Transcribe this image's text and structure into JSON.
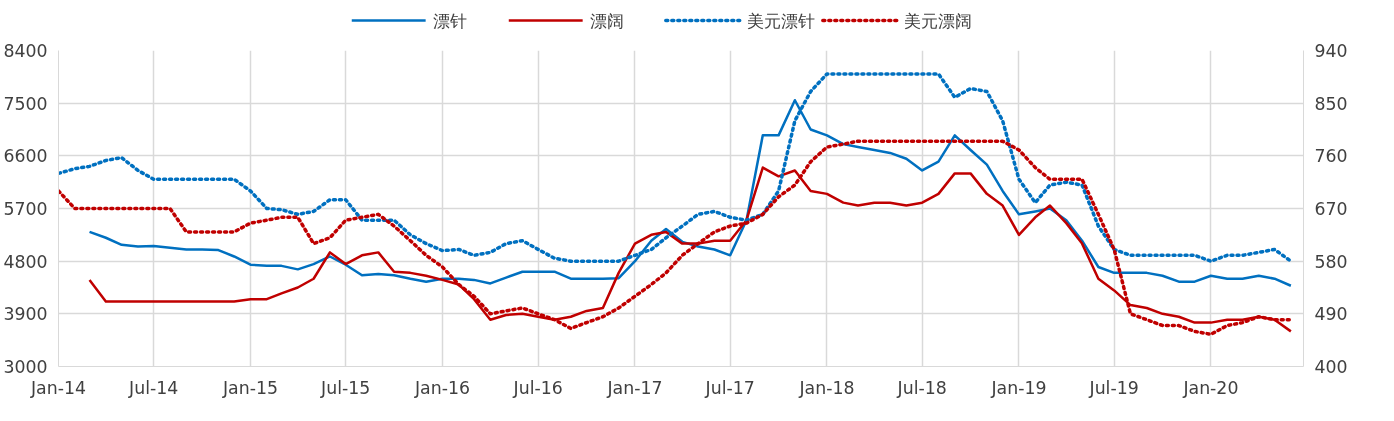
{
  "chart_data": {
    "type": "line",
    "x": [
      "2014-01",
      "2014-02",
      "2014-03",
      "2014-04",
      "2014-05",
      "2014-06",
      "2014-07",
      "2014-08",
      "2014-09",
      "2014-10",
      "2014-11",
      "2014-12",
      "2015-01",
      "2015-02",
      "2015-03",
      "2015-04",
      "2015-05",
      "2015-06",
      "2015-07",
      "2015-08",
      "2015-09",
      "2015-10",
      "2015-11",
      "2015-12",
      "2016-01",
      "2016-02",
      "2016-03",
      "2016-04",
      "2016-05",
      "2016-06",
      "2016-07",
      "2016-08",
      "2016-09",
      "2016-10",
      "2016-11",
      "2016-12",
      "2017-01",
      "2017-02",
      "2017-03",
      "2017-04",
      "2017-05",
      "2017-06",
      "2017-07",
      "2017-08",
      "2017-09",
      "2017-10",
      "2017-11",
      "2017-12",
      "2018-01",
      "2018-02",
      "2018-03",
      "2018-04",
      "2018-05",
      "2018-06",
      "2018-07",
      "2018-08",
      "2018-09",
      "2018-10",
      "2018-11",
      "2018-12",
      "2019-01",
      "2019-02",
      "2019-03",
      "2019-04",
      "2019-05",
      "2019-06",
      "2019-07",
      "2019-08",
      "2019-09",
      "2019-10",
      "2019-11",
      "2019-12",
      "2020-01",
      "2020-02",
      "2020-03",
      "2020-04",
      "2020-05",
      "2020-06"
    ],
    "series": [
      {
        "name": "漂针",
        "color": "#0070c0",
        "line_style": "solid",
        "values": [
          null,
          null,
          5300,
          5200,
          5080,
          5050,
          5060,
          5030,
          5000,
          5000,
          4990,
          4880,
          4740,
          4720,
          4720,
          4660,
          4750,
          4880,
          4740,
          4560,
          4580,
          4560,
          4500,
          4450,
          4500,
          4500,
          4480,
          4420,
          4520,
          4620,
          4620,
          4620,
          4500,
          4500,
          4500,
          4510,
          4800,
          5150,
          5350,
          5130,
          5050,
          5000,
          4900,
          5500,
          6950,
          6950,
          7550,
          7050,
          6950,
          6800,
          6750,
          6700,
          6650,
          6550,
          6350,
          6500,
          6950,
          6700,
          6450,
          6000,
          5600,
          5650,
          5700,
          5500,
          5150,
          4700,
          4600,
          4600,
          4600,
          4550,
          4450,
          4450,
          4550,
          4500,
          4500,
          4550,
          4500,
          4380
        ]
      },
      {
        "name": "漂阔",
        "color": "#c00000",
        "line_style": "solid",
        "values": [
          null,
          null,
          4480,
          4110,
          4110,
          4110,
          4110,
          4110,
          4110,
          4110,
          4110,
          4110,
          4150,
          4150,
          4250,
          4350,
          4500,
          4950,
          4750,
          4900,
          4950,
          4620,
          4600,
          4550,
          4480,
          4400,
          4150,
          3800,
          3880,
          3900,
          3850,
          3800,
          3850,
          3950,
          4000,
          4600,
          5100,
          5250,
          5300,
          5100,
          5100,
          5150,
          5150,
          5500,
          6400,
          6250,
          6350,
          6000,
          5950,
          5800,
          5750,
          5800,
          5800,
          5750,
          5800,
          5950,
          6300,
          6300,
          5950,
          5750,
          5250,
          5550,
          5750,
          5450,
          5100,
          4500,
          4300,
          4050,
          4000,
          3900,
          3850,
          3750,
          3750,
          3800,
          3800,
          3850,
          3800,
          3600
        ]
      },
      {
        "name": "美元漂针",
        "color": "#0070c0",
        "line_style": "dotted",
        "axis": "y2",
        "values": [
          730,
          738,
          742,
          752,
          757,
          735,
          720,
          720,
          720,
          720,
          720,
          720,
          700,
          670,
          668,
          660,
          665,
          685,
          685,
          650,
          650,
          650,
          625,
          610,
          598,
          600,
          590,
          595,
          610,
          615,
          600,
          585,
          580,
          580,
          580,
          580,
          590,
          600,
          620,
          640,
          660,
          665,
          655,
          650,
          660,
          700,
          820,
          870,
          900,
          900,
          900,
          900,
          900,
          900,
          900,
          900,
          860,
          875,
          870,
          820,
          720,
          680,
          710,
          715,
          710,
          640,
          600,
          590,
          590,
          590,
          590,
          590,
          580,
          590,
          590,
          595,
          600,
          580
        ]
      },
      {
        "name": "美元漂阔",
        "color": "#c00000",
        "line_style": "dotted",
        "axis": "y2",
        "values": [
          700,
          670,
          670,
          670,
          670,
          670,
          670,
          670,
          630,
          630,
          630,
          630,
          645,
          650,
          655,
          655,
          610,
          620,
          650,
          655,
          660,
          640,
          615,
          590,
          570,
          540,
          520,
          490,
          495,
          500,
          490,
          480,
          465,
          475,
          485,
          500,
          520,
          540,
          560,
          590,
          610,
          630,
          640,
          645,
          660,
          690,
          710,
          750,
          775,
          780,
          785,
          785,
          785,
          785,
          785,
          785,
          785,
          785,
          785,
          785,
          770,
          740,
          720,
          720,
          720,
          660,
          600,
          490,
          480,
          470,
          470,
          460,
          455,
          470,
          475,
          485,
          480,
          480
        ]
      }
    ],
    "xlim": [
      "2014-01-01",
      "2020-06-25"
    ],
    "xticks": [
      {
        "value": "2014-01-01",
        "label": "Jan-14"
      },
      {
        "value": "2014-07-01",
        "label": "Jul-14"
      },
      {
        "value": "2015-01-01",
        "label": "Jan-15"
      },
      {
        "value": "2015-07-01",
        "label": "Jul-15"
      },
      {
        "value": "2016-01-01",
        "label": "Jan-16"
      },
      {
        "value": "2016-07-01",
        "label": "Jul-16"
      },
      {
        "value": "2017-01-01",
        "label": "Jan-17"
      },
      {
        "value": "2017-07-01",
        "label": "Jul-17"
      },
      {
        "value": "2018-01-01",
        "label": "Jan-18"
      },
      {
        "value": "2018-07-01",
        "label": "Jul-18"
      },
      {
        "value": "2019-01-01",
        "label": "Jan-19"
      },
      {
        "value": "2019-07-01",
        "label": "Jul-19"
      },
      {
        "value": "2020-01-01",
        "label": "Jan-20"
      }
    ],
    "ylim": [
      3000,
      8400
    ],
    "yticks": [
      3000,
      3900,
      4800,
      5700,
      6600,
      7500,
      8400
    ],
    "y2lim": [
      400,
      940
    ],
    "y2ticks": [
      400,
      490,
      580,
      670,
      760,
      850,
      940
    ],
    "grid": true,
    "legend": "top",
    "marker": "none"
  }
}
